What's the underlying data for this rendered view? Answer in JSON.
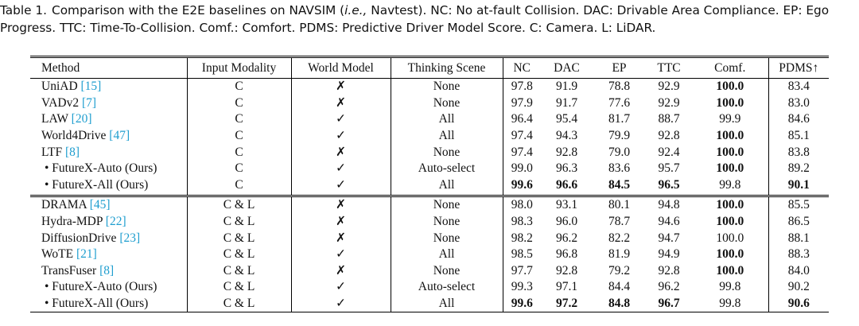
{
  "caption": {
    "label": "Table 1.",
    "before": "Comparison with the E2E baselines on NAVSIM (",
    "italic": "i.e.,",
    "after": " Navtest). NC: No at-fault Collision. DAC: Drivable Area Compliance. EP: Ego Progress. TTC: Time-To-Collision. Comf.: Comfort. PDMS: Predictive Driver Model Score. C: Camera. L: LiDAR."
  },
  "table": {
    "headers": [
      "Method",
      "Input Modality",
      "World Model",
      "Thinking Scene",
      "NC",
      "DAC",
      "EP",
      "TTC",
      "Comf.",
      "PDMS↑"
    ],
    "groups": [
      {
        "rows": [
          {
            "method": {
              "name": "UniAD ",
              "cite": "[15]"
            },
            "cells": [
              "C",
              "✗",
              "None",
              "97.8",
              "91.9",
              "78.8",
              "92.9",
              "100.0",
              "83.4"
            ],
            "bold": [
              7
            ]
          },
          {
            "method": {
              "name": "VADv2 ",
              "cite": "[7]"
            },
            "cells": [
              "C",
              "✗",
              "None",
              "97.9",
              "91.7",
              "77.6",
              "92.9",
              "100.0",
              "83.0"
            ],
            "bold": [
              7
            ]
          },
          {
            "method": {
              "name": "LAW ",
              "cite": "[20]"
            },
            "cells": [
              "C",
              "✓",
              "All",
              "96.4",
              "95.4",
              "81.7",
              "88.7",
              "99.9",
              "84.6"
            ],
            "bold": []
          },
          {
            "method": {
              "name": "World4Drive ",
              "cite": "[47]"
            },
            "cells": [
              "C",
              "✓",
              "All",
              "97.4",
              "94.3",
              "79.9",
              "92.8",
              "100.0",
              "85.1"
            ],
            "bold": [
              7
            ]
          },
          {
            "method": {
              "name": "LTF ",
              "cite": "[8]"
            },
            "cells": [
              "C",
              "✗",
              "None",
              "97.4",
              "92.8",
              "79.0",
              "92.4",
              "100.0",
              "83.8"
            ],
            "bold": [
              7
            ]
          },
          {
            "method": {
              "name": "• FutureX-Auto (Ours)"
            },
            "cells": [
              "C",
              "✓",
              "Auto-select",
              "99.0",
              "96.3",
              "83.6",
              "95.7",
              "100.0",
              "89.2"
            ],
            "bold": [
              7
            ]
          },
          {
            "method": {
              "name": "• FutureX-All (Ours)"
            },
            "cells": [
              "C",
              "✓",
              "All",
              "99.6",
              "96.6",
              "84.5",
              "96.5",
              "99.8",
              "90.1"
            ],
            "bold": [
              3,
              4,
              5,
              6,
              8
            ]
          }
        ]
      },
      {
        "rows": [
          {
            "method": {
              "name": "DRAMA ",
              "cite": "[45]"
            },
            "cells": [
              "C & L",
              "✗",
              "None",
              "98.0",
              "93.1",
              "80.1",
              "94.8",
              "100.0",
              "85.5"
            ],
            "bold": [
              7
            ]
          },
          {
            "method": {
              "name": "Hydra-MDP ",
              "cite": "[22]"
            },
            "cells": [
              "C & L",
              "✗",
              "None",
              "98.3",
              "96.0",
              "78.7",
              "94.6",
              "100.0",
              "86.5"
            ],
            "bold": [
              7
            ]
          },
          {
            "method": {
              "name": "DiffusionDrive ",
              "cite": "[23]"
            },
            "cells": [
              "C & L",
              "✗",
              "None",
              "98.2",
              "96.2",
              "82.2",
              "94.7",
              "100.0",
              "88.1"
            ],
            "bold": []
          },
          {
            "method": {
              "name": "WoTE ",
              "cite": "[21]"
            },
            "cells": [
              "C & L",
              "✓",
              "All",
              "98.5",
              "96.8",
              "81.9",
              "94.9",
              "100.0",
              "88.3"
            ],
            "bold": [
              7
            ]
          },
          {
            "method": {
              "name": "TransFuser ",
              "cite": "[8]"
            },
            "cells": [
              "C & L",
              "✗",
              "None",
              "97.7",
              "92.8",
              "79.2",
              "92.8",
              "100.0",
              "84.0"
            ],
            "bold": [
              7
            ]
          },
          {
            "method": {
              "name": "• FutureX-Auto (Ours)"
            },
            "cells": [
              "C & L",
              "✓",
              "Auto-select",
              "99.3",
              "97.1",
              "84.4",
              "96.2",
              "99.8",
              "90.2"
            ],
            "bold": []
          },
          {
            "method": {
              "name": "• FutureX-All (Ours)"
            },
            "cells": [
              "C & L",
              "✓",
              "All",
              "99.6",
              "97.2",
              "84.8",
              "96.7",
              "99.8",
              "90.6"
            ],
            "bold": [
              3,
              4,
              5,
              6,
              8
            ]
          }
        ]
      }
    ]
  }
}
